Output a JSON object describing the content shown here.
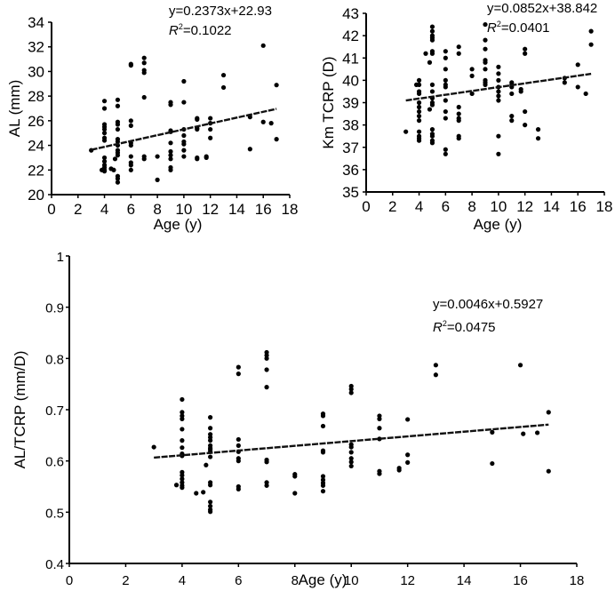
{
  "chart_data": [
    {
      "type": "scatter",
      "id": "al",
      "xlabel": "Age (y)",
      "ylabel": "AL (mm)",
      "xlim": [
        0,
        18
      ],
      "xticks": [
        0,
        2,
        4,
        6,
        8,
        10,
        12,
        14,
        16,
        18
      ],
      "ylim": [
        20,
        34
      ],
      "yticks": [
        20,
        22,
        24,
        26,
        28,
        30,
        32,
        34
      ],
      "equation": "y=0.2373x+22.93",
      "r2_label": "R",
      "r2_exp": "2",
      "r2_value": "=0.1022",
      "trend": {
        "slope": 0.2373,
        "intercept": 22.93,
        "x_range": [
          3,
          17
        ]
      },
      "points": [
        [
          3,
          23.6
        ],
        [
          3.8,
          22.0
        ],
        [
          4,
          27.6
        ],
        [
          4,
          27.0
        ],
        [
          4,
          25.7
        ],
        [
          4,
          25.5
        ],
        [
          4,
          25.3
        ],
        [
          4,
          25.0
        ],
        [
          4,
          24.6
        ],
        [
          4,
          24.4
        ],
        [
          4,
          23.0
        ],
        [
          4,
          22.7
        ],
        [
          4,
          22.4
        ],
        [
          4,
          22.2
        ],
        [
          4,
          22.0
        ],
        [
          4,
          21.9
        ],
        [
          4.5,
          22.1
        ],
        [
          4.7,
          22.0
        ],
        [
          4.8,
          22.9
        ],
        [
          5,
          27.7
        ],
        [
          5,
          27.2
        ],
        [
          5,
          25.9
        ],
        [
          5,
          25.7
        ],
        [
          5,
          25.3
        ],
        [
          5,
          24.5
        ],
        [
          5,
          24.3
        ],
        [
          5,
          24.0
        ],
        [
          5,
          23.6
        ],
        [
          5,
          23.4
        ],
        [
          5,
          23.2
        ],
        [
          5,
          21.5
        ],
        [
          5,
          21.3
        ],
        [
          5,
          21.0
        ],
        [
          6,
          30.6
        ],
        [
          6,
          30.5
        ],
        [
          6,
          26.0
        ],
        [
          6,
          25.6
        ],
        [
          6,
          24.2
        ],
        [
          6,
          24.0
        ],
        [
          6,
          23.1
        ],
        [
          6,
          22.6
        ],
        [
          6,
          22.4
        ],
        [
          6,
          22.0
        ],
        [
          7,
          31.1
        ],
        [
          7,
          30.7
        ],
        [
          7,
          30.1
        ],
        [
          7,
          29.9
        ],
        [
          7,
          27.9
        ],
        [
          7,
          23.1
        ],
        [
          7,
          22.9
        ],
        [
          8,
          23.1
        ],
        [
          8,
          21.2
        ],
        [
          9,
          27.5
        ],
        [
          9,
          27.3
        ],
        [
          9,
          25.2
        ],
        [
          9,
          25.1
        ],
        [
          9,
          24.2
        ],
        [
          9,
          23.5
        ],
        [
          9,
          23.2
        ],
        [
          9,
          22.9
        ],
        [
          9,
          22.2
        ],
        [
          9,
          22.0
        ],
        [
          10,
          29.2
        ],
        [
          10,
          27.5
        ],
        [
          10,
          25.3
        ],
        [
          10,
          24.8
        ],
        [
          10,
          24.3
        ],
        [
          10,
          24.1
        ],
        [
          10,
          23.6
        ],
        [
          10,
          23.1
        ],
        [
          11,
          26.2
        ],
        [
          11,
          26.1
        ],
        [
          11,
          25.4
        ],
        [
          11,
          25.3
        ],
        [
          11,
          23.0
        ],
        [
          11,
          22.9
        ],
        [
          11.7,
          23.1
        ],
        [
          11.7,
          23.0
        ],
        [
          12,
          26.2
        ],
        [
          12,
          25.8
        ],
        [
          12,
          25.3
        ],
        [
          12,
          24.6
        ],
        [
          13,
          29.7
        ],
        [
          13,
          28.7
        ],
        [
          15,
          26.3
        ],
        [
          15,
          23.7
        ],
        [
          16,
          32.1
        ],
        [
          16,
          25.9
        ],
        [
          16.6,
          25.8
        ],
        [
          17,
          28.9
        ],
        [
          17,
          24.5
        ]
      ]
    },
    {
      "type": "scatter",
      "id": "km",
      "xlabel": "Age (y)",
      "ylabel": "Km TCRP (D)",
      "xlim": [
        0,
        18
      ],
      "xticks": [
        0,
        2,
        4,
        6,
        8,
        10,
        12,
        14,
        16,
        18
      ],
      "ylim": [
        35,
        43
      ],
      "yticks": [
        35,
        36,
        37,
        38,
        39,
        40,
        41,
        42,
        43
      ],
      "equation": "y=0.0852x+38.842",
      "r2_label": "R",
      "r2_exp": "2",
      "r2_value": "=0.0401",
      "trend": {
        "slope": 0.0852,
        "intercept": 38.842,
        "x_range": [
          3,
          17
        ]
      },
      "points": [
        [
          3,
          37.7
        ],
        [
          3.8,
          39.8
        ],
        [
          4,
          40.0
        ],
        [
          4,
          39.8
        ],
        [
          4,
          39.5
        ],
        [
          4,
          39.4
        ],
        [
          4,
          39.0
        ],
        [
          4,
          38.8
        ],
        [
          4,
          38.6
        ],
        [
          4,
          38.4
        ],
        [
          4,
          38.2
        ],
        [
          4,
          37.7
        ],
        [
          4,
          37.5
        ],
        [
          4,
          37.4
        ],
        [
          4,
          37.3
        ],
        [
          4.5,
          41.2
        ],
        [
          4.8,
          40.8
        ],
        [
          4.8,
          38.7
        ],
        [
          5,
          42.4
        ],
        [
          5,
          42.2
        ],
        [
          5,
          42.0
        ],
        [
          5,
          41.9
        ],
        [
          5,
          41.8
        ],
        [
          5,
          41.3
        ],
        [
          5,
          41.2
        ],
        [
          5,
          39.8
        ],
        [
          5,
          39.5
        ],
        [
          5,
          39.2
        ],
        [
          5,
          39.0
        ],
        [
          5,
          38.9
        ],
        [
          5,
          37.8
        ],
        [
          5,
          37.6
        ],
        [
          5,
          37.5
        ],
        [
          5,
          37.3
        ],
        [
          5,
          37.2
        ],
        [
          6,
          41.3
        ],
        [
          6,
          41.0
        ],
        [
          6,
          40.5
        ],
        [
          6,
          40.0
        ],
        [
          6,
          39.8
        ],
        [
          6,
          39.7
        ],
        [
          6,
          39.1
        ],
        [
          6,
          38.6
        ],
        [
          6,
          38.3
        ],
        [
          6,
          36.9
        ],
        [
          6,
          36.7
        ],
        [
          7,
          41.5
        ],
        [
          7,
          41.2
        ],
        [
          7,
          38.8
        ],
        [
          7,
          38.5
        ],
        [
          7,
          38.3
        ],
        [
          7,
          38.2
        ],
        [
          7,
          37.5
        ],
        [
          7,
          37.4
        ],
        [
          8,
          40.5
        ],
        [
          8,
          40.2
        ],
        [
          8,
          39.4
        ],
        [
          9,
          42.5
        ],
        [
          9,
          41.8
        ],
        [
          9,
          41.4
        ],
        [
          9,
          40.9
        ],
        [
          9,
          40.8
        ],
        [
          9,
          40.5
        ],
        [
          9,
          40.0
        ],
        [
          9,
          39.9
        ],
        [
          9,
          39.8
        ],
        [
          10,
          40.6
        ],
        [
          10,
          40.3
        ],
        [
          10,
          40.0
        ],
        [
          10,
          39.7
        ],
        [
          10,
          39.5
        ],
        [
          10,
          39.3
        ],
        [
          10,
          39.1
        ],
        [
          10,
          37.5
        ],
        [
          10,
          36.7
        ],
        [
          11,
          39.9
        ],
        [
          11,
          39.8
        ],
        [
          11,
          39.7
        ],
        [
          11,
          39.4
        ],
        [
          11,
          38.4
        ],
        [
          11,
          38.2
        ],
        [
          11.7,
          39.6
        ],
        [
          11.7,
          39.5
        ],
        [
          12,
          41.4
        ],
        [
          12,
          41.2
        ],
        [
          12,
          38.6
        ],
        [
          12,
          38.0
        ],
        [
          13,
          37.8
        ],
        [
          13,
          37.4
        ],
        [
          15,
          40.1
        ],
        [
          15,
          39.9
        ],
        [
          16,
          40.7
        ],
        [
          16,
          39.7
        ],
        [
          16.6,
          39.4
        ],
        [
          17,
          42.2
        ],
        [
          17,
          41.6
        ]
      ]
    },
    {
      "type": "scatter",
      "id": "ratio",
      "xlabel": "Age (y)",
      "ylabel": "AL/TCRP (mm/D)",
      "xlim": [
        0,
        18
      ],
      "xticks": [
        0,
        2,
        4,
        6,
        8,
        10,
        12,
        14,
        16,
        18
      ],
      "ylim": [
        0.4,
        1
      ],
      "yticks": [
        "0.4",
        "0.5",
        "0.6",
        "0.7",
        "0.8",
        "0.9",
        "1"
      ],
      "equation": "y=0.0046x+0.5927",
      "r2_label": "R",
      "r2_exp": "2",
      "r2_value": "=0.0475",
      "trend": {
        "slope": 0.0046,
        "intercept": 0.5927,
        "x_range": [
          3,
          17
        ]
      },
      "points": [
        [
          3,
          0.627
        ],
        [
          3.8,
          0.553
        ],
        [
          4,
          0.72
        ],
        [
          4,
          0.695
        ],
        [
          4,
          0.688
        ],
        [
          4,
          0.682
        ],
        [
          4,
          0.662
        ],
        [
          4,
          0.64
        ],
        [
          4,
          0.626
        ],
        [
          4,
          0.614
        ],
        [
          4,
          0.61
        ],
        [
          4,
          0.578
        ],
        [
          4,
          0.572
        ],
        [
          4,
          0.565
        ],
        [
          4,
          0.558
        ],
        [
          4,
          0.552
        ],
        [
          4,
          0.548
        ],
        [
          4.5,
          0.537
        ],
        [
          4.75,
          0.539
        ],
        [
          4.85,
          0.592
        ],
        [
          5,
          0.685
        ],
        [
          5,
          0.664
        ],
        [
          5,
          0.652
        ],
        [
          5,
          0.646
        ],
        [
          5,
          0.64
        ],
        [
          5,
          0.63
        ],
        [
          5,
          0.625
        ],
        [
          5,
          0.622
        ],
        [
          5,
          0.618
        ],
        [
          5,
          0.608
        ],
        [
          5,
          0.558
        ],
        [
          5,
          0.553
        ],
        [
          5,
          0.52
        ],
        [
          5,
          0.512
        ],
        [
          5,
          0.505
        ],
        [
          5,
          0.501
        ],
        [
          6,
          0.783
        ],
        [
          6,
          0.77
        ],
        [
          6,
          0.642
        ],
        [
          6,
          0.63
        ],
        [
          6,
          0.618
        ],
        [
          6,
          0.605
        ],
        [
          6,
          0.6
        ],
        [
          6,
          0.55
        ],
        [
          6,
          0.545
        ],
        [
          7,
          0.812
        ],
        [
          7,
          0.806
        ],
        [
          7,
          0.8
        ],
        [
          7,
          0.778
        ],
        [
          7,
          0.744
        ],
        [
          7,
          0.602
        ],
        [
          7,
          0.598
        ],
        [
          7,
          0.558
        ],
        [
          7,
          0.552
        ],
        [
          8,
          0.574
        ],
        [
          8,
          0.57
        ],
        [
          8,
          0.537
        ],
        [
          9,
          0.692
        ],
        [
          9,
          0.688
        ],
        [
          9,
          0.668
        ],
        [
          9,
          0.62
        ],
        [
          9,
          0.617
        ],
        [
          9,
          0.57
        ],
        [
          9,
          0.563
        ],
        [
          9,
          0.557
        ],
        [
          9,
          0.552
        ],
        [
          9,
          0.541
        ],
        [
          10,
          0.746
        ],
        [
          10,
          0.74
        ],
        [
          10,
          0.733
        ],
        [
          10,
          0.632
        ],
        [
          10,
          0.627
        ],
        [
          10,
          0.617
        ],
        [
          10,
          0.605
        ],
        [
          10,
          0.598
        ],
        [
          10,
          0.59
        ],
        [
          11,
          0.688
        ],
        [
          11,
          0.682
        ],
        [
          11,
          0.664
        ],
        [
          11,
          0.643
        ],
        [
          11,
          0.58
        ],
        [
          11,
          0.575
        ],
        [
          11.7,
          0.586
        ],
        [
          11.7,
          0.582
        ],
        [
          12,
          0.681
        ],
        [
          12,
          0.612
        ],
        [
          12,
          0.597
        ],
        [
          13,
          0.787
        ],
        [
          13,
          0.768
        ],
        [
          15,
          0.656
        ],
        [
          15,
          0.595
        ],
        [
          16,
          0.787
        ],
        [
          16.1,
          0.653
        ],
        [
          16.6,
          0.655
        ],
        [
          17,
          0.695
        ],
        [
          17,
          0.58
        ]
      ]
    }
  ]
}
